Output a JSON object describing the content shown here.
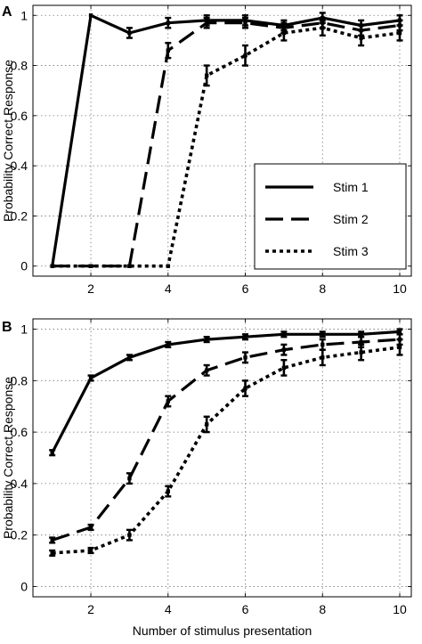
{
  "chart_data": [
    {
      "type": "line",
      "panel_label": "A",
      "title": "",
      "xlabel": "",
      "ylabel": "Probability Correct Response",
      "xlim": [
        0.5,
        10.3
      ],
      "ylim": [
        -0.04,
        1.04
      ],
      "x_ticks": [
        2,
        4,
        6,
        8,
        10
      ],
      "y_ticks": [
        0,
        0.2,
        0.4,
        0.6,
        0.8,
        1
      ],
      "x_tick_labels": [
        "2",
        "4",
        "6",
        "8",
        "10"
      ],
      "y_tick_labels": [
        "0",
        "0.2",
        "0.4",
        "0.6",
        "0.8",
        "1"
      ],
      "grid": true,
      "legend": "center-right",
      "x": [
        1,
        2,
        3,
        4,
        5,
        6,
        7,
        8,
        9,
        10
      ],
      "series": [
        {
          "name": "Stim 1",
          "style": "solid",
          "values": [
            0,
            1,
            0.93,
            0.97,
            0.98,
            0.98,
            0.96,
            0.99,
            0.96,
            0.98
          ],
          "errors": [
            0,
            0,
            0.02,
            0.02,
            0.02,
            0.02,
            0.02,
            0.02,
            0.02,
            0.02
          ]
        },
        {
          "name": "Stim 2",
          "style": "dashed",
          "values": [
            0,
            0,
            0,
            0.86,
            0.97,
            0.97,
            0.95,
            0.97,
            0.94,
            0.96
          ],
          "errors": [
            0,
            0,
            0,
            0.03,
            0.02,
            0.02,
            0.02,
            0.02,
            0.02,
            0.02
          ]
        },
        {
          "name": "Stim 3",
          "style": "dotted",
          "values": [
            0,
            0,
            0,
            0,
            0.76,
            0.84,
            0.93,
            0.95,
            0.91,
            0.93
          ],
          "errors": [
            0,
            0,
            0,
            0,
            0.04,
            0.04,
            0.03,
            0.03,
            0.03,
            0.03
          ]
        }
      ]
    },
    {
      "type": "line",
      "panel_label": "B",
      "title": "",
      "xlabel": "Number of stimulus presentation",
      "ylabel": "Probability Correct Response",
      "xlim": [
        0.5,
        10.3
      ],
      "ylim": [
        -0.04,
        1.04
      ],
      "x_ticks": [
        2,
        4,
        6,
        8,
        10
      ],
      "y_ticks": [
        0,
        0.2,
        0.4,
        0.6,
        0.8,
        1
      ],
      "x_tick_labels": [
        "2",
        "4",
        "6",
        "8",
        "10"
      ],
      "y_tick_labels": [
        "0",
        "0.2",
        "0.4",
        "0.6",
        "0.8",
        "1"
      ],
      "grid": true,
      "legend": "none",
      "x": [
        1,
        2,
        3,
        4,
        5,
        6,
        7,
        8,
        9,
        10
      ],
      "series": [
        {
          "name": "",
          "style": "solid",
          "values": [
            0.52,
            0.81,
            0.89,
            0.94,
            0.96,
            0.97,
            0.98,
            0.98,
            0.98,
            0.99
          ],
          "errors": [
            0.01,
            0.01,
            0.01,
            0.01,
            0.01,
            0.01,
            0.01,
            0.01,
            0.01,
            0.01
          ]
        },
        {
          "name": "",
          "style": "dashed",
          "values": [
            0.18,
            0.23,
            0.42,
            0.72,
            0.84,
            0.89,
            0.92,
            0.94,
            0.95,
            0.96
          ],
          "errors": [
            0.01,
            0.01,
            0.02,
            0.02,
            0.02,
            0.02,
            0.02,
            0.02,
            0.02,
            0.02
          ]
        },
        {
          "name": "",
          "style": "dotted",
          "values": [
            0.13,
            0.14,
            0.2,
            0.37,
            0.63,
            0.77,
            0.85,
            0.89,
            0.91,
            0.93
          ],
          "errors": [
            0.01,
            0.01,
            0.02,
            0.02,
            0.03,
            0.03,
            0.03,
            0.03,
            0.03,
            0.03
          ]
        }
      ]
    }
  ]
}
